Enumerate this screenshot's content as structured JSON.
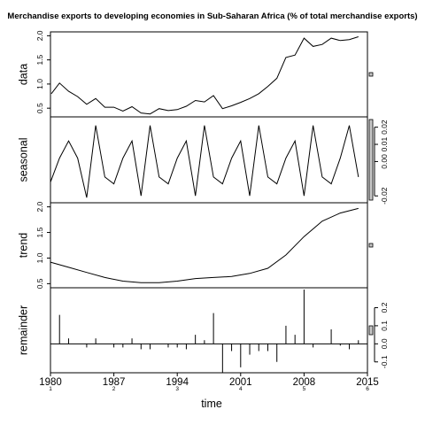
{
  "chart_data": {
    "type": "line",
    "title": "Merchandise exports to developing economies in Sub-Saharan Africa (% of total merchandise exports)",
    "xlabel": "time",
    "x_ticks": [
      {
        "label": "1980",
        "sub": "1",
        "value": 1980
      },
      {
        "label": "1987",
        "sub": "2",
        "value": 1987
      },
      {
        "label": "1994",
        "sub": "3",
        "value": 1994
      },
      {
        "label": "2001",
        "sub": "4",
        "value": 2001
      },
      {
        "label": "2008",
        "sub": "5",
        "value": 2008
      },
      {
        "label": "2015",
        "sub": "6",
        "value": 2015
      }
    ],
    "xlim": [
      1980,
      2015
    ],
    "panels": [
      {
        "name": "data",
        "ylabel": "data",
        "axis_side": "left",
        "ylim": [
          0.32,
          2.08
        ],
        "yticks": [
          0.5,
          1.0,
          1.5,
          2.0
        ],
        "ytick_labels": [
          "0.5",
          "1.0",
          "1.5",
          "2.0"
        ],
        "style": "line",
        "x": [
          1980.1,
          1981,
          1982,
          1983,
          1984,
          1985,
          1986,
          1987,
          1988,
          1989,
          1990,
          1991,
          1992,
          1993,
          1994,
          1995,
          1996,
          1997,
          1998,
          1999,
          2000,
          2001,
          2002,
          2003,
          2004,
          2005,
          2006,
          2007,
          2008,
          2009,
          2010,
          2011,
          2012,
          2013,
          2014
        ],
        "values": [
          0.8,
          1.02,
          0.85,
          0.74,
          0.58,
          0.7,
          0.52,
          0.52,
          0.44,
          0.53,
          0.4,
          0.38,
          0.49,
          0.45,
          0.47,
          0.54,
          0.66,
          0.63,
          0.76,
          0.49,
          0.55,
          0.62,
          0.7,
          0.8,
          0.95,
          1.12,
          1.55,
          1.6,
          1.95,
          1.78,
          1.82,
          1.95,
          1.9,
          1.92,
          1.98
        ]
      },
      {
        "name": "seasonal",
        "ylabel": "seasonal",
        "axis_side": "right",
        "ylim": [
          -0.024,
          0.026
        ],
        "yticks": [
          -0.02,
          0.0,
          0.01,
          0.02
        ],
        "ytick_labels": [
          "-0.02",
          "0.00",
          "0.01",
          "0.02"
        ],
        "style": "line",
        "x": [
          1980,
          1981,
          1982,
          1983,
          1984,
          1985,
          1986,
          1987,
          1988,
          1989,
          1990,
          1991,
          1992,
          1993,
          1994,
          1995,
          1996,
          1997,
          1998,
          1999,
          2000,
          2001,
          2002,
          2003,
          2004,
          2005,
          2006,
          2007,
          2008,
          2009,
          2010,
          2011,
          2012,
          2013,
          2014
        ],
        "values": [
          -0.012,
          0.002,
          0.012,
          0.002,
          -0.021,
          0.021,
          -0.009,
          -0.013,
          0.002,
          0.012,
          -0.02,
          0.021,
          -0.009,
          -0.013,
          0.002,
          0.012,
          -0.02,
          0.021,
          -0.009,
          -0.013,
          0.002,
          0.012,
          -0.02,
          0.021,
          -0.009,
          -0.013,
          0.002,
          0.012,
          -0.02,
          0.021,
          -0.009,
          -0.013,
          0.002,
          0.021,
          -0.009
        ]
      },
      {
        "name": "trend",
        "ylabel": "trend",
        "axis_side": "left",
        "ylim": [
          0.42,
          2.08
        ],
        "yticks": [
          0.5,
          1.0,
          1.5,
          2.0
        ],
        "ytick_labels": [
          "0.5",
          "1.0",
          "1.5",
          "2.0"
        ],
        "style": "line",
        "x": [
          1980,
          1982,
          1984,
          1986,
          1988,
          1990,
          1992,
          1994,
          1996,
          1998,
          2000,
          2002,
          2004,
          2006,
          2008,
          2010,
          2012,
          2014
        ],
        "values": [
          0.92,
          0.82,
          0.72,
          0.62,
          0.55,
          0.52,
          0.52,
          0.55,
          0.6,
          0.62,
          0.64,
          0.7,
          0.8,
          1.06,
          1.42,
          1.72,
          1.88,
          1.97
        ]
      },
      {
        "name": "remainder",
        "ylabel": "remainder",
        "axis_side": "right",
        "ylim": [
          -0.16,
          0.31
        ],
        "yticks": [
          -0.1,
          0.0,
          0.1,
          0.2
        ],
        "ytick_labels": [
          "-0.1",
          "0.0",
          "0.1",
          "0.2"
        ],
        "style": "spikes",
        "baseline": 0,
        "x": [
          1980,
          1981,
          1982,
          1983,
          1984,
          1985,
          1986,
          1987,
          1988,
          1989,
          1990,
          1991,
          1992,
          1993,
          1994,
          1995,
          1996,
          1997,
          1998,
          1999,
          2000,
          2001,
          2002,
          2003,
          2004,
          2005,
          2006,
          2007,
          2008,
          2009,
          2010,
          2011,
          2012,
          2013,
          2014
        ],
        "values": [
          -0.13,
          0.16,
          0.03,
          0.0,
          -0.02,
          0.03,
          0.0,
          -0.02,
          -0.02,
          0.03,
          -0.03,
          -0.03,
          0.0,
          -0.02,
          -0.02,
          -0.03,
          0.05,
          0.02,
          0.17,
          -0.16,
          -0.04,
          -0.13,
          -0.06,
          -0.04,
          -0.04,
          -0.1,
          0.1,
          0.05,
          0.3,
          -0.02,
          0.0,
          0.08,
          -0.01,
          -0.03,
          0.02
        ]
      }
    ],
    "range_bar_color": "#c8c8c8",
    "line_color": "#000000"
  }
}
